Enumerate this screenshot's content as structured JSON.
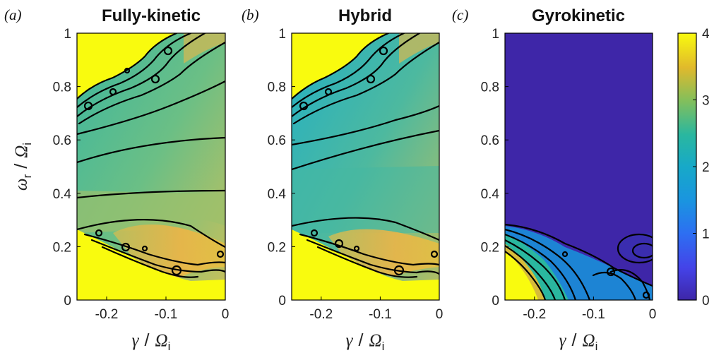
{
  "chart_data": [
    {
      "panel_label": "(a)",
      "title": "Fully-kinetic",
      "type": "heatmap",
      "xlabel": {
        "symbol": "γ",
        "slash": "/",
        "denom": "Ω",
        "sub": "i"
      },
      "ylabel": {
        "symbol": "ω",
        "sub": "r",
        "slash": "/",
        "denom": "Ω",
        "sub2": "i"
      },
      "xlim": [
        -0.25,
        0
      ],
      "ylim": [
        0,
        1
      ],
      "xticks": [
        "-0.2",
        "-0.1",
        "0"
      ],
      "yticks": [
        "0",
        "0.2",
        "0.4",
        "0.6",
        "0.8",
        "1"
      ]
    },
    {
      "panel_label": "(b)",
      "title": "Hybrid",
      "type": "heatmap",
      "xlabel": {
        "symbol": "γ",
        "slash": "/",
        "denom": "Ω",
        "sub": "i"
      },
      "xlim": [
        -0.25,
        0
      ],
      "ylim": [
        0,
        1
      ],
      "xticks": [
        "-0.2",
        "-0.1",
        "0"
      ],
      "yticks": [
        "0",
        "0.2",
        "0.4",
        "0.6",
        "0.8",
        "1"
      ]
    },
    {
      "panel_label": "(c)",
      "title": "Gyrokinetic",
      "type": "heatmap",
      "xlabel": {
        "symbol": "γ",
        "slash": "/",
        "denom": "Ω",
        "sub": "i"
      },
      "xlim": [
        -0.25,
        0
      ],
      "ylim": [
        0,
        1
      ],
      "xticks": [
        "-0.2",
        "-0.1",
        "0"
      ],
      "yticks": [
        "0",
        "0.2",
        "0.4",
        "0.6",
        "0.8",
        "1"
      ],
      "colorbar": {
        "range": [
          0,
          4
        ],
        "ticks": [
          "0",
          "1",
          "2",
          "3",
          "4"
        ]
      }
    }
  ],
  "colors": {
    "yellow": "#f9fb0e",
    "orange": "#f0b842",
    "teal": "#33b7a0",
    "cyan": "#16a9d6",
    "navy": "#3e26a8"
  }
}
